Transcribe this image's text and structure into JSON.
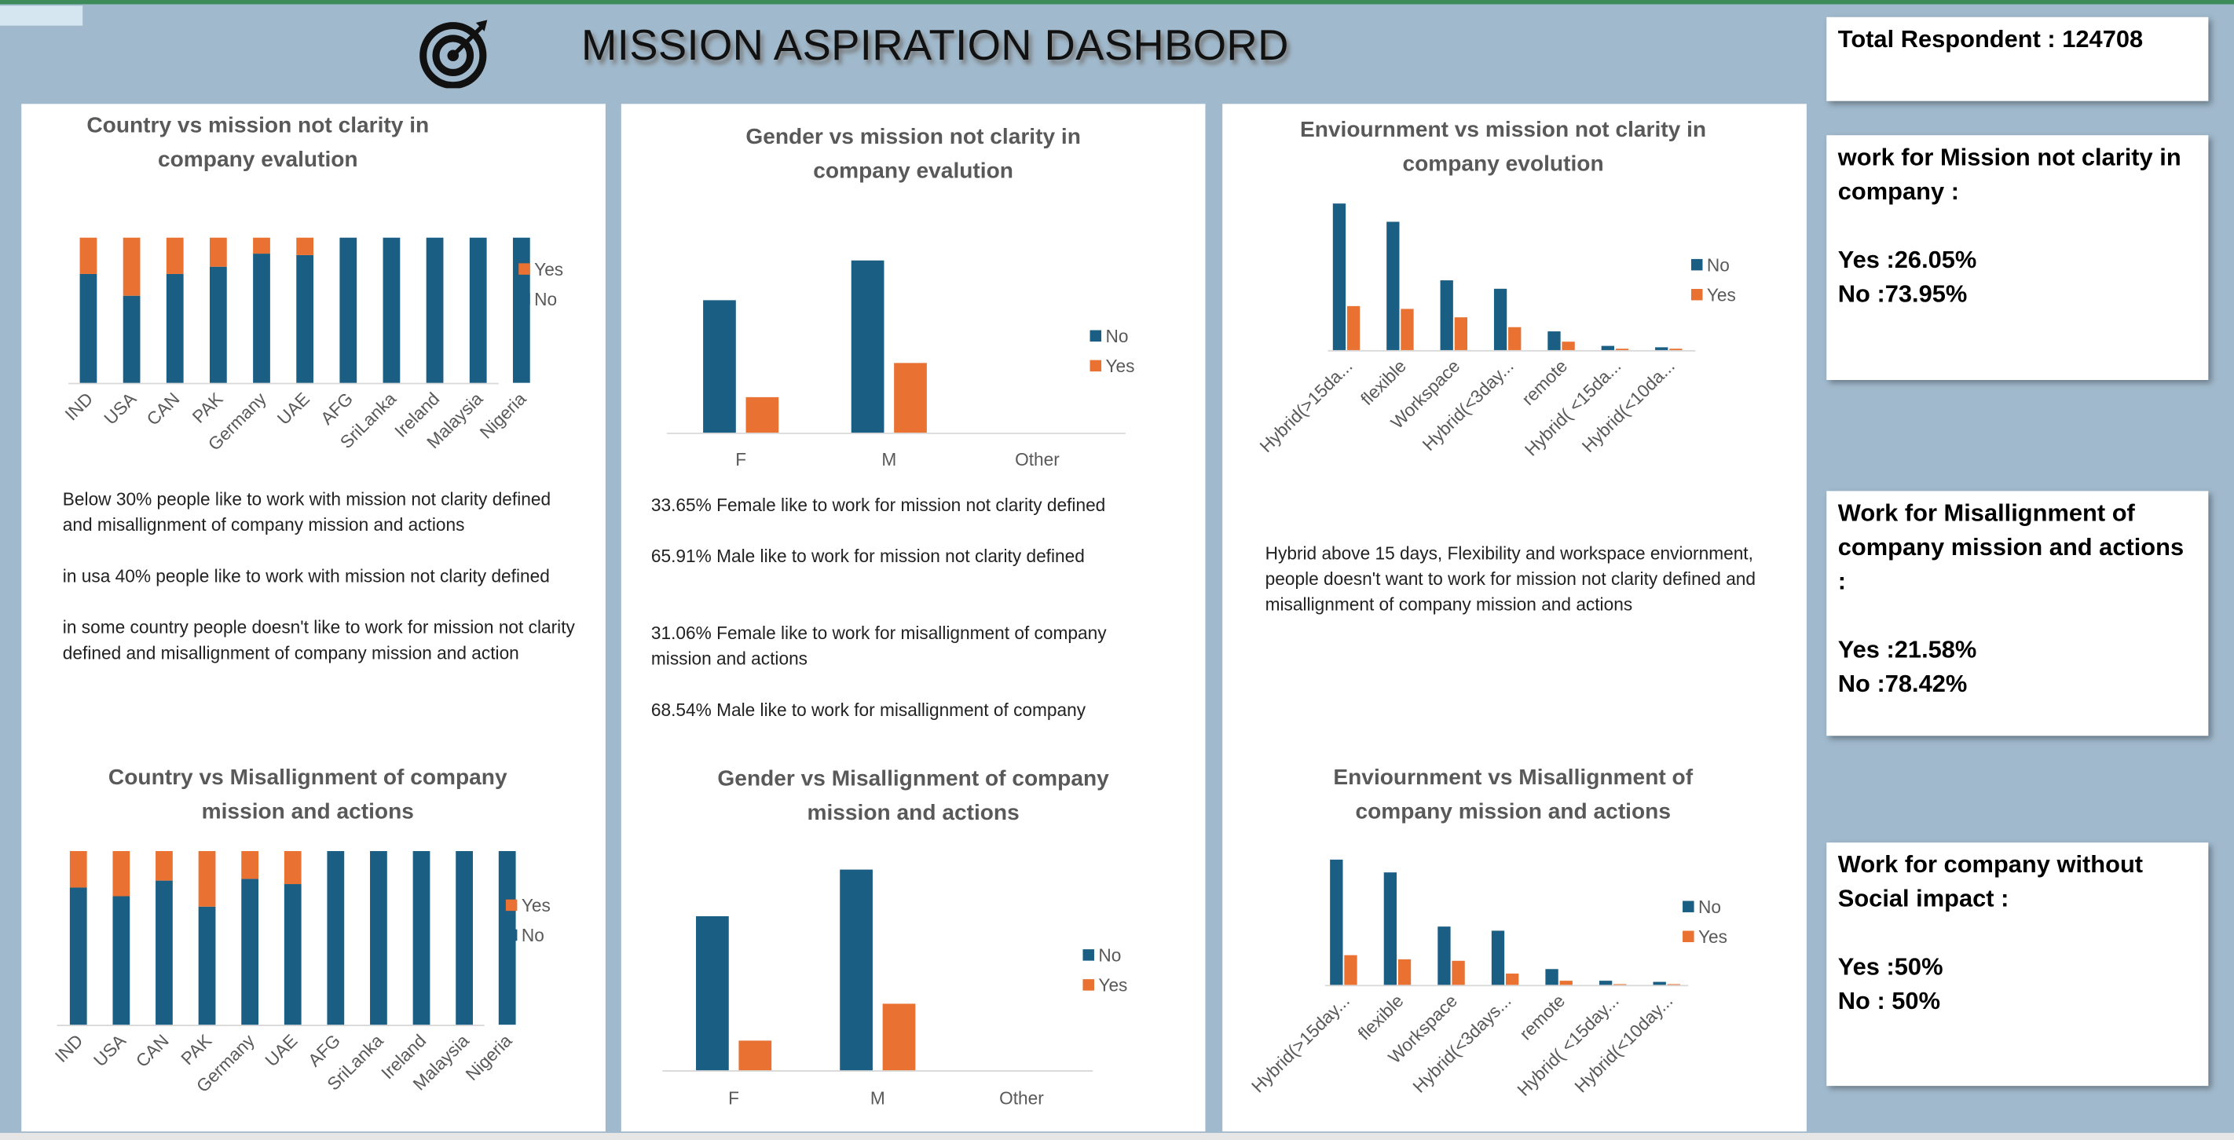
{
  "title": "MISSION ASPIRATION DASHBORD",
  "cards": [
    {
      "heading": "Total Respondent : 124708"
    },
    {
      "heading": "work for Mission not clarity in company :",
      "yes": "Yes :26.05%",
      "no": "No :73.95%"
    },
    {
      "heading": "Work for Misallignment of company mission and actions :",
      "yes": "Yes :21.58%",
      "no": "No :78.42%"
    },
    {
      "heading": "Work for company without Social impact :",
      "yes": "Yes :50%",
      "no": "No : 50%"
    }
  ],
  "chart_data": [
    {
      "type": "stacked_bar",
      "title": "Country vs mission not clarity in company evalution",
      "categories": [
        "IND",
        "USA",
        "CAN",
        "PAK",
        "Germany",
        "UAE",
        "AFG",
        "SriLanka",
        "Ireland",
        "Malaysia",
        "Nigeria"
      ],
      "series": [
        {
          "name": "No",
          "color": "#1b5e84",
          "values": [
            75,
            60,
            75,
            80,
            89,
            88,
            100,
            100,
            100,
            100,
            100
          ]
        },
        {
          "name": "Yes",
          "color": "#e97132",
          "values": [
            25,
            40,
            25,
            20,
            11,
            12,
            0,
            0,
            0,
            0,
            0
          ]
        }
      ],
      "annotations": [
        "Below 30% people like to work with mission not clarity defined and misallignment of company mission and actions",
        "in usa 40% people like to work with mission not clarity defined",
        "in some country people doesn't like to work  for mission not clarity defined and misallignment of company mission and action"
      ]
    },
    {
      "type": "stacked_bar",
      "title": "Country vs Misallignment of company mission and actions",
      "categories": [
        "IND",
        "USA",
        "CAN",
        "PAK",
        "Germany",
        "UAE",
        "AFG",
        "SriLanka",
        "Ireland",
        "Malaysia",
        "Nigeria"
      ],
      "series": [
        {
          "name": "No",
          "color": "#1b5e84",
          "values": [
            79,
            74,
            83,
            68,
            84,
            81,
            100,
            100,
            100,
            100,
            100
          ]
        },
        {
          "name": "Yes",
          "color": "#e97132",
          "values": [
            21,
            26,
            17,
            32,
            16,
            19,
            0,
            0,
            0,
            0,
            0
          ]
        }
      ]
    },
    {
      "type": "bar",
      "title": "Gender vs mission not clarity in company evalution",
      "categories": [
        "F",
        "M",
        "Other"
      ],
      "series": [
        {
          "name": "No",
          "color": "#1b5e84",
          "values": [
            40300,
            52400,
            0
          ]
        },
        {
          "name": "Yes",
          "color": "#e97132",
          "values": [
            10800,
            21200,
            0
          ]
        }
      ],
      "annotations": [
        "33.65% Female like to work for mission not clarity defined",
        "65.91% Male like to work for mission not clarity defined",
        "31.06% Female like to work for misallignment of company mission and actions",
        "68.54% Male like to work for misallignment of company"
      ]
    },
    {
      "type": "bar",
      "title": "Gender vs Misallignment of company mission and actions",
      "categories": [
        "F",
        "M",
        "Other"
      ],
      "series": [
        {
          "name": "No",
          "color": "#1b5e84",
          "values": [
            42600,
            55500,
            0
          ]
        },
        {
          "name": "Yes",
          "color": "#e97132",
          "values": [
            8200,
            18400,
            0
          ]
        }
      ]
    },
    {
      "type": "bar",
      "title": "Enviournment vs mission not clarity in company evolution",
      "categories": [
        "Hybrid(>15da...",
        "flexible",
        "Workspace",
        "Hybrid(<3day...",
        "remote",
        "Hybrid( <15da...",
        "Hybrid(<10da..."
      ],
      "series": [
        {
          "name": "No",
          "color": "#1b5e84",
          "values": [
            31300,
            27400,
            14900,
            13100,
            4000,
            900,
            600
          ]
        },
        {
          "name": "Yes",
          "color": "#e97132",
          "values": [
            9400,
            8800,
            7000,
            4900,
            1800,
            300,
            300
          ]
        }
      ],
      "annotations": [
        "Hybrid above 15 days, Flexibility  and workspace enviornment,",
        "people doesn't want to work for mission not clarity defined and misallignment of company mission and actions"
      ]
    },
    {
      "type": "bar",
      "title": "Enviournment vs Misallignment of company mission and actions",
      "categories": [
        "Hybrid(>15day...",
        "flexible",
        "Workspace",
        "Hybrid(<3days...",
        "remote",
        "Hybrid( <15day...",
        "Hybrid(<10day..."
      ],
      "series": [
        {
          "name": "No",
          "color": "#1b5e84",
          "values": [
            33300,
            29900,
            15500,
            14400,
            4200,
            1100,
            800
          ]
        },
        {
          "name": "Yes",
          "color": "#e97132",
          "values": [
            7900,
            6800,
            6400,
            3000,
            1100,
            200,
            200
          ]
        }
      ]
    }
  ]
}
